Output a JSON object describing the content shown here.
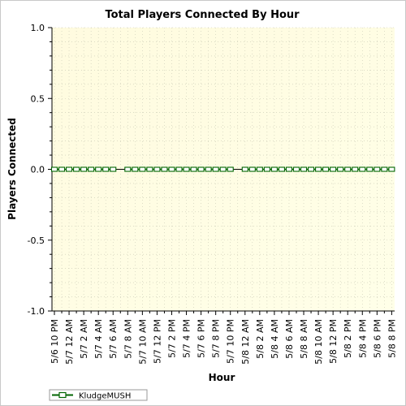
{
  "chart_data": {
    "type": "line",
    "title": "Total Players Connected By Hour",
    "xlabel": "Hour",
    "ylabel": "Players Connected",
    "ylim": [
      -1.0,
      1.0
    ],
    "yticks": [
      "1.0",
      "0.5",
      "0.0",
      "-0.5",
      "-1.0"
    ],
    "x_tick_labels": [
      "5/6 10 PM",
      "5/7 12 AM",
      "5/7 2 AM",
      "5/7 4 AM",
      "5/7 6 AM",
      "5/7 8 AM",
      "5/7 10 AM",
      "5/7 12 PM",
      "5/7 2 PM",
      "5/7 4 PM",
      "5/7 6 PM",
      "5/7 8 PM",
      "5/7 10 PM",
      "5/8 12 AM",
      "5/8 2 AM",
      "5/8 4 AM",
      "5/8 6 AM",
      "5/8 8 AM",
      "5/8 10 AM",
      "5/8 12 PM",
      "5/8 2 PM",
      "5/8 4 PM",
      "5/8 6 PM",
      "5/8 8 PM"
    ],
    "series": [
      {
        "name": "KludgeMUSH",
        "color": "#006400",
        "values": [
          0,
          0,
          0,
          0,
          0,
          0,
          0,
          0,
          0,
          null,
          0,
          0,
          0,
          0,
          0,
          0,
          0,
          0,
          0,
          0,
          0,
          0,
          0,
          0,
          0,
          null,
          0,
          0,
          0,
          0,
          0,
          0,
          0,
          0,
          0,
          0,
          0,
          0,
          0,
          0,
          0,
          0,
          0,
          0,
          0,
          0,
          0
        ]
      }
    ],
    "grid": true,
    "legend_position": "bottom-left",
    "plot_background": [
      "#fffbdf",
      "#ffffe8"
    ]
  }
}
